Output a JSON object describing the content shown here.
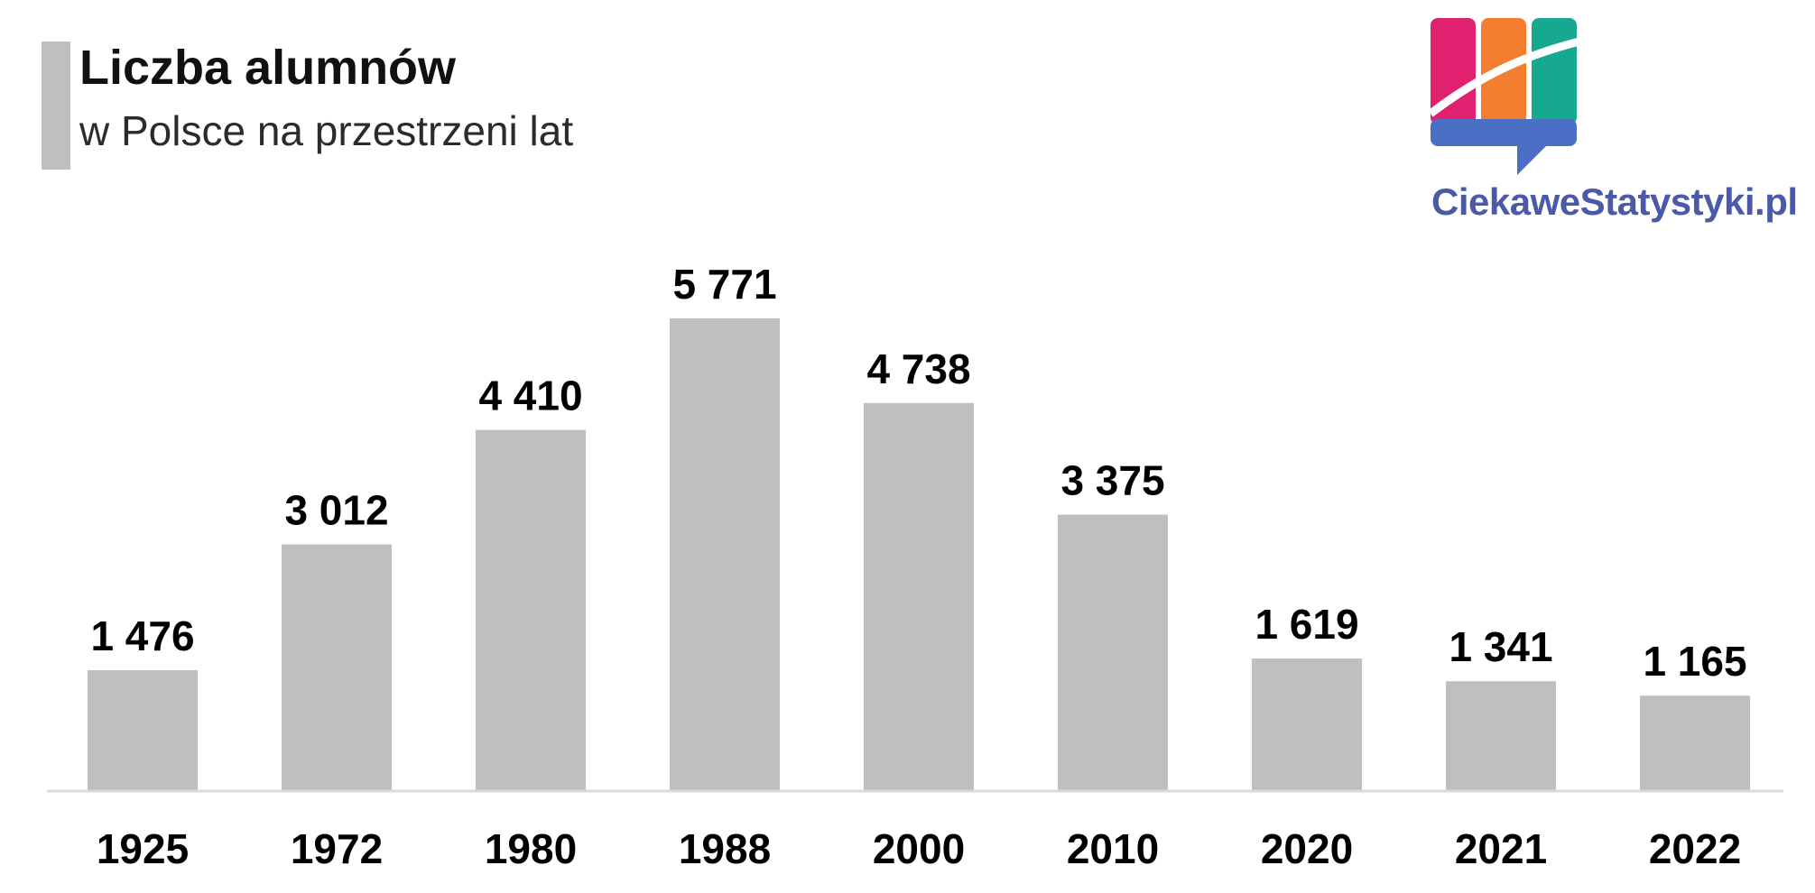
{
  "header": {
    "title": "Liczba alumnów",
    "subtitle": "w Polsce na przestrzeni lat"
  },
  "logo": {
    "text": "CiekaweStatystyki.pl",
    "colors": [
      "#e0216f",
      "#f47e30",
      "#17a98f",
      "#4a6fc4"
    ]
  },
  "chart_data": {
    "type": "bar",
    "title": "Liczba alumnów",
    "subtitle": "w Polsce na przestrzeni lat",
    "categories": [
      "1925",
      "1972",
      "1980",
      "1988",
      "2000",
      "2010",
      "2020",
      "2021",
      "2022"
    ],
    "values": [
      1476,
      3012,
      4410,
      5771,
      4738,
      3375,
      1619,
      1341,
      1165
    ],
    "value_labels": [
      "1 476",
      "3 012",
      "4 410",
      "5 771",
      "4 738",
      "3 375",
      "1 619",
      "1 341",
      "1 165"
    ],
    "xlabel": "",
    "ylabel": "",
    "ylim": [
      0,
      5771
    ],
    "grid": false,
    "legend": "none",
    "bar_color": "#bfbfbf",
    "axis_color": "#d9d9d9"
  }
}
